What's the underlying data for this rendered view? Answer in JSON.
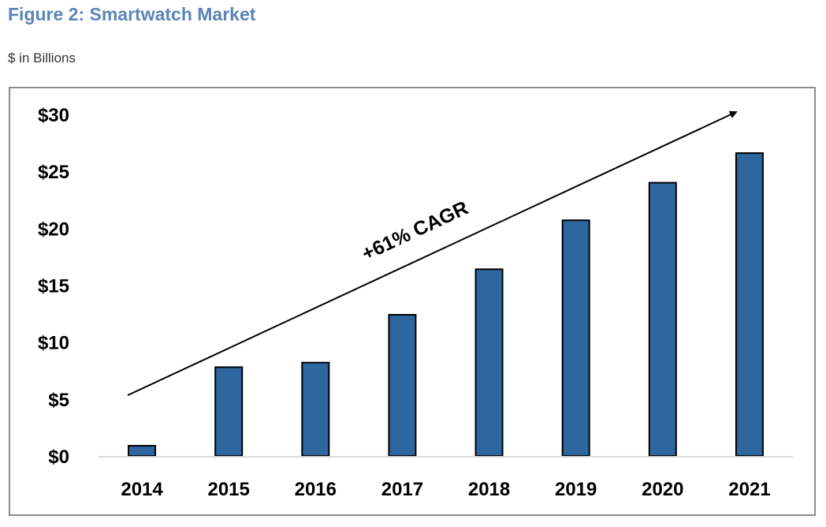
{
  "header": {
    "title": "Figure 2: Smartwatch Market",
    "subtitle": "$ in Billions"
  },
  "colors": {
    "title": "#5b84b8",
    "bar_fill": "#2e66a0",
    "bar_stroke": "#000000",
    "text": "#000000"
  },
  "chart_data": {
    "type": "bar",
    "categories": [
      "2014",
      "2015",
      "2016",
      "2017",
      "2018",
      "2019",
      "2020",
      "2021"
    ],
    "values": [
      0.9,
      7.8,
      8.2,
      12.4,
      16.4,
      20.7,
      24.0,
      26.6
    ],
    "ylim": [
      0,
      30
    ],
    "yticks": [
      0,
      5,
      10,
      15,
      20,
      25,
      30
    ],
    "ytick_labels": [
      "$0",
      "$5",
      "$10",
      "$15",
      "$20",
      "$25",
      "$30"
    ],
    "annotation": "+61% CAGR",
    "grid": false,
    "legend": "none"
  }
}
